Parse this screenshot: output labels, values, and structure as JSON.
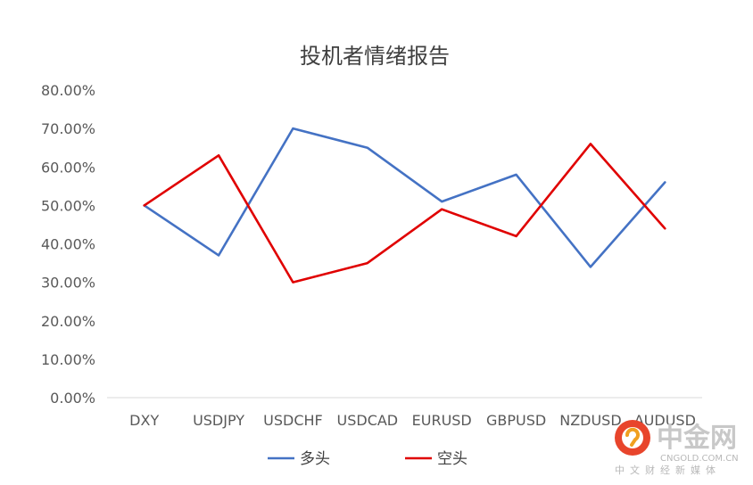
{
  "chart_data": {
    "type": "line",
    "title": "投机者情绪报告",
    "categories": [
      "DXY",
      "USDJPY",
      "USDCHF",
      "USDCAD",
      "EURUSD",
      "GBPUSD",
      "NZDUSD",
      "AUDUSD"
    ],
    "ylim": [
      0,
      80
    ],
    "yticks": [
      "0.00%",
      "10.00%",
      "20.00%",
      "30.00%",
      "40.00%",
      "50.00%",
      "60.00%",
      "70.00%",
      "80.00%"
    ],
    "grid": false,
    "legend_position": "bottom",
    "series": [
      {
        "name": "多头",
        "color": "#4472c4",
        "values": [
          50,
          37,
          70,
          65,
          51,
          58,
          34,
          56
        ]
      },
      {
        "name": "空头",
        "color": "#e00000",
        "values": [
          50,
          63,
          30,
          35,
          49,
          42,
          66,
          44
        ]
      }
    ]
  },
  "watermark": {
    "logo_text": "中金网",
    "url": "CNGOLD.COM.CN",
    "tagline": "中文财经新媒体"
  }
}
